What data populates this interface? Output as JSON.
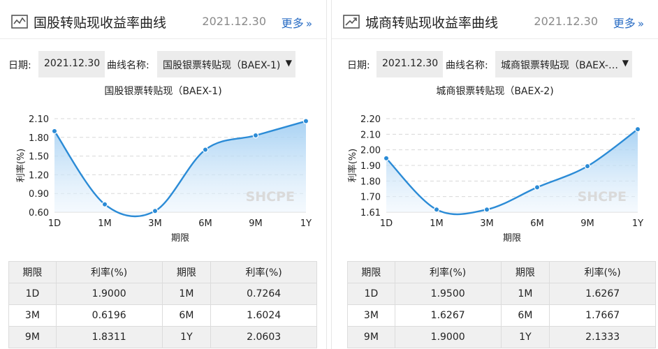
{
  "panels": [
    {
      "title": "国股转贴现收益率曲线",
      "date": "2021.12.30",
      "more_label": "更多",
      "date_label": "日期:",
      "date_value": "2021.12.30",
      "curve_label": "曲线名称:",
      "curve_value": "国股银票转贴现（BAEX-1)",
      "icon": "line-chart-icon"
    },
    {
      "title": "城商转贴现收益率曲线",
      "date": "2021.12.30",
      "more_label": "更多",
      "date_label": "日期:",
      "date_value": "2021.12.30",
      "curve_label": "曲线名称:",
      "curve_value": "城商银票转贴现（BAEX-…",
      "icon": "trend-up-icon"
    }
  ],
  "colors": {
    "line": "#2b8bd6",
    "area_top": "#9fcdf2",
    "area_bottom": "#eef6fd",
    "more_link": "#2a6dc4"
  },
  "chart_data": [
    {
      "type": "area",
      "title": "国股银票转贴现（BAEX-1)",
      "xlabel": "期限",
      "ylabel": "利率(%)",
      "watermark": "SHCPE",
      "categories": [
        "1D",
        "1M",
        "3M",
        "6M",
        "9M",
        "1Y"
      ],
      "values": [
        1.9,
        0.7264,
        0.6196,
        1.6024,
        1.8311,
        2.0603
      ],
      "yticks": [
        "2.10",
        "1.80",
        "1.50",
        "1.20",
        "0.90",
        "0.60"
      ],
      "ylim": [
        0.6,
        2.1
      ],
      "grid": true
    },
    {
      "type": "area",
      "title": "城商银票转贴现（BAEX-2)",
      "xlabel": "期限",
      "ylabel": "利率(%)",
      "watermark": "SHCPE",
      "categories": [
        "1D",
        "1M",
        "3M",
        "6M",
        "9M",
        "1Y"
      ],
      "values": [
        1.95,
        1.6267,
        1.6267,
        1.7667,
        1.9,
        2.1333
      ],
      "yticks": [
        "2.20",
        "2.10",
        "2.00",
        "1.90",
        "1.80",
        "1.70",
        "1.61"
      ],
      "ylim": [
        1.61,
        2.2
      ],
      "grid": true
    }
  ],
  "tables": [
    {
      "header": [
        "期限",
        "利率(%)",
        "期限",
        "利率(%)"
      ],
      "rows": [
        [
          "1D",
          "1.9000",
          "1M",
          "0.7264"
        ],
        [
          "3M",
          "0.6196",
          "6M",
          "1.6024"
        ],
        [
          "9M",
          "1.8311",
          "1Y",
          "2.0603"
        ]
      ]
    },
    {
      "header": [
        "期限",
        "利率(%)",
        "期限",
        "利率(%)"
      ],
      "rows": [
        [
          "1D",
          "1.9500",
          "1M",
          "1.6267"
        ],
        [
          "3M",
          "1.6267",
          "6M",
          "1.7667"
        ],
        [
          "9M",
          "1.9000",
          "1Y",
          "2.1333"
        ]
      ]
    }
  ]
}
